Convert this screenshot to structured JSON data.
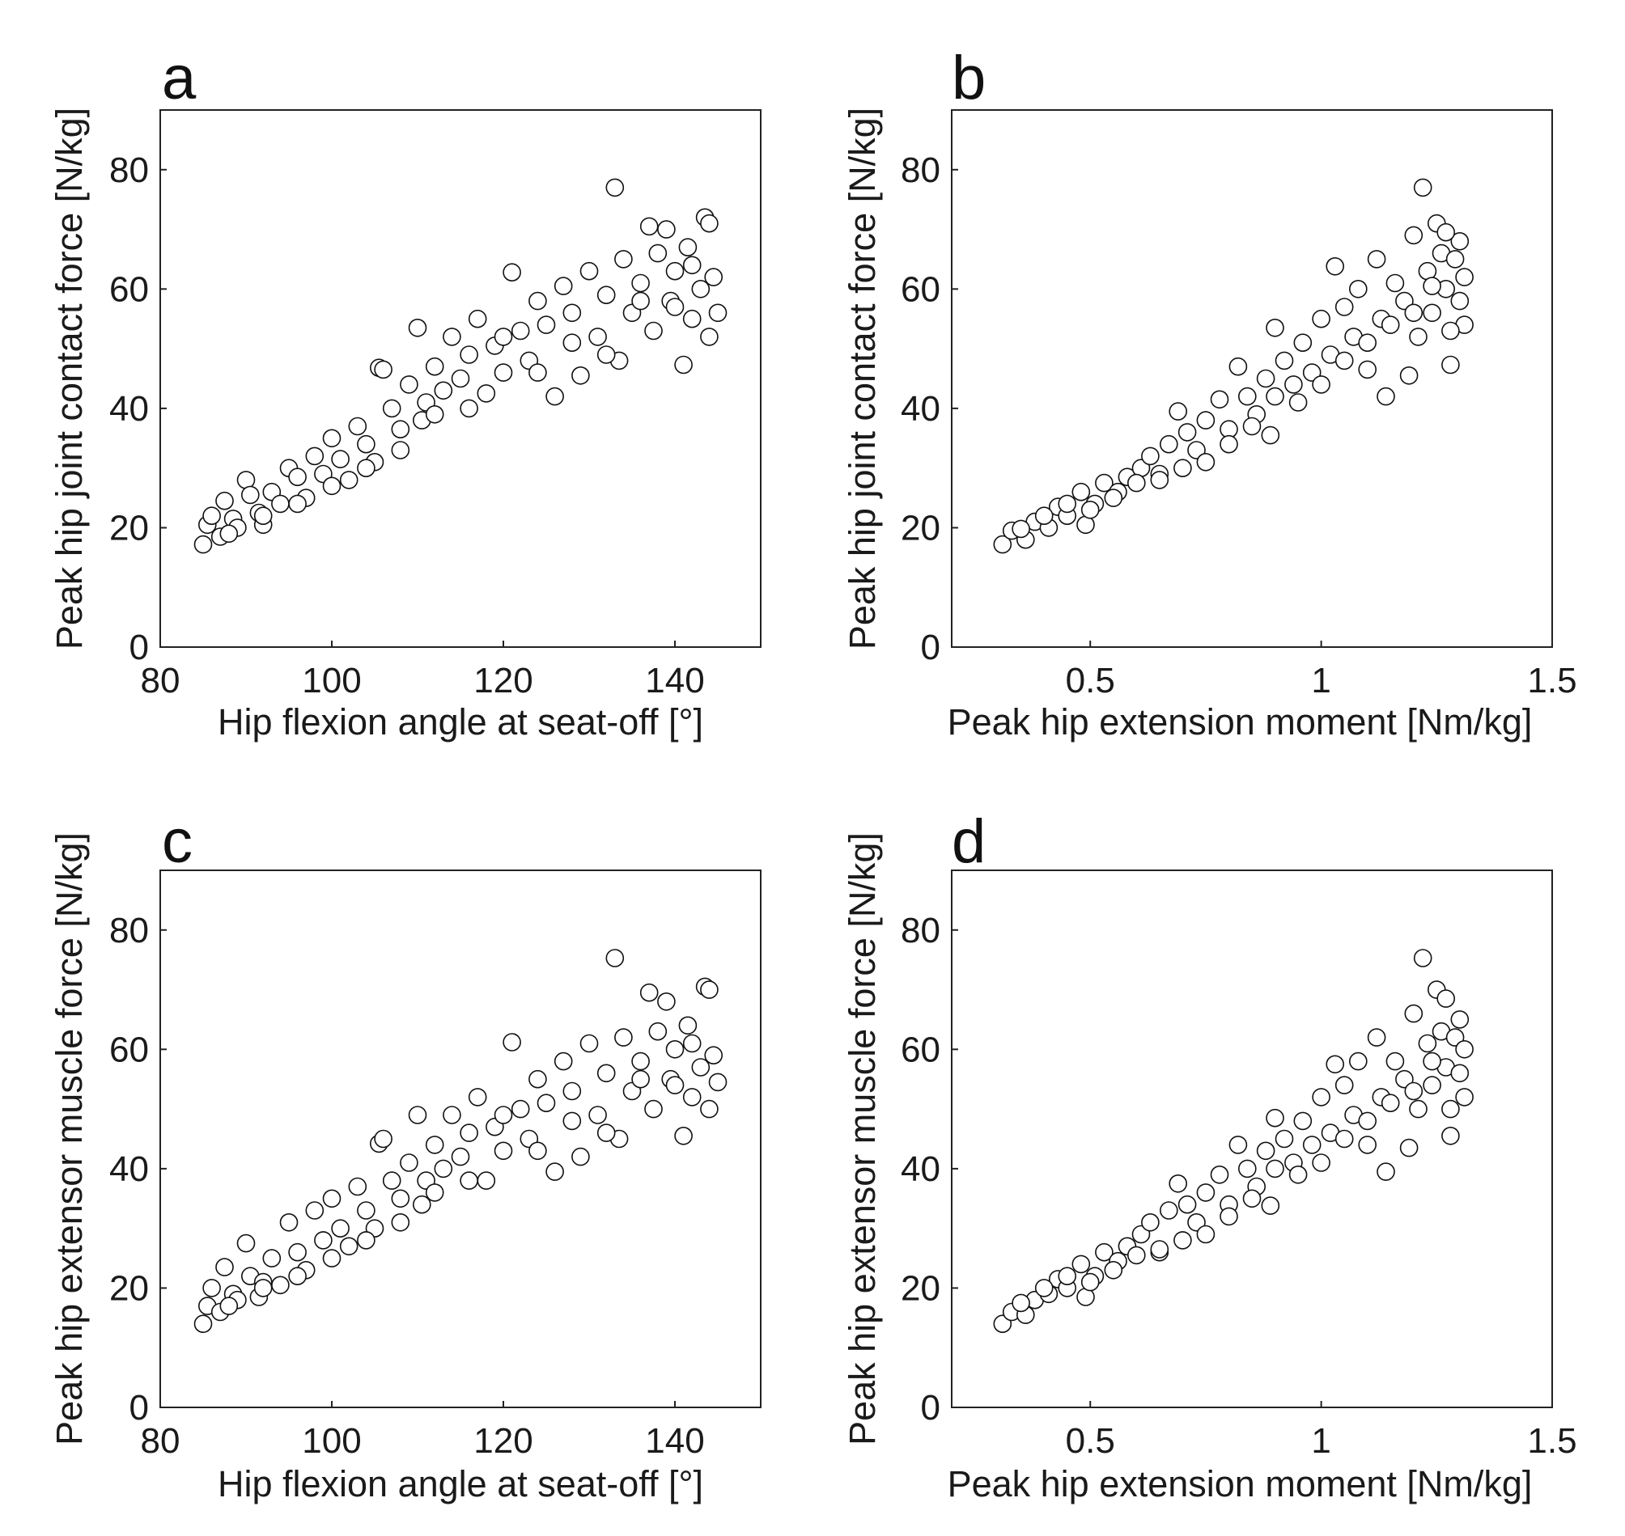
{
  "chart_data": [
    {
      "type": "scatter",
      "panel": "a",
      "xlabel": "Hip flexion angle at seat-off [°]",
      "ylabel": "Peak hip joint contact force [N/kg]",
      "xlim": [
        80,
        150
      ],
      "ylim": [
        0,
        90
      ],
      "xticks": [
        "80",
        "100",
        "120",
        "140"
      ],
      "yticks": [
        "0",
        "20",
        "40",
        "60",
        "80"
      ],
      "grid": false,
      "marker": "open-circle",
      "points": [
        [
          85,
          17.2
        ],
        [
          85.5,
          20.5
        ],
        [
          86,
          22
        ],
        [
          87,
          18.5
        ],
        [
          87.5,
          24.5
        ],
        [
          88.5,
          21.5
        ],
        [
          89,
          20
        ],
        [
          90,
          28
        ],
        [
          90.5,
          25.5
        ],
        [
          91.5,
          22.5
        ],
        [
          92,
          20.5
        ],
        [
          93,
          26
        ],
        [
          94,
          24
        ],
        [
          95,
          30
        ],
        [
          96,
          28.5
        ],
        [
          97,
          25
        ],
        [
          98,
          32
        ],
        [
          99,
          29
        ],
        [
          100,
          35
        ],
        [
          101,
          31.5
        ],
        [
          102,
          28
        ],
        [
          103,
          37
        ],
        [
          104,
          34
        ],
        [
          105,
          31
        ],
        [
          105.5,
          46.8
        ],
        [
          106,
          46.5
        ],
        [
          107,
          40
        ],
        [
          108,
          36.5
        ],
        [
          109,
          44
        ],
        [
          110,
          53.5
        ],
        [
          110.5,
          38
        ],
        [
          111,
          41
        ],
        [
          112,
          47
        ],
        [
          113,
          43
        ],
        [
          114,
          52
        ],
        [
          115,
          45
        ],
        [
          116,
          49
        ],
        [
          117,
          55
        ],
        [
          118,
          42.5
        ],
        [
          119,
          50.5
        ],
        [
          120,
          46
        ],
        [
          121,
          62.8
        ],
        [
          122,
          53
        ],
        [
          123,
          48
        ],
        [
          124,
          58
        ],
        [
          125,
          54
        ],
        [
          126,
          42
        ],
        [
          127,
          60.5
        ],
        [
          128,
          56
        ],
        [
          129,
          45.5
        ],
        [
          130,
          63
        ],
        [
          131,
          52
        ],
        [
          132,
          59
        ],
        [
          133,
          77
        ],
        [
          133.5,
          48
        ],
        [
          134,
          65
        ],
        [
          135,
          56
        ],
        [
          136,
          61
        ],
        [
          137,
          70.5
        ],
        [
          137.5,
          53
        ],
        [
          138,
          66
        ],
        [
          139,
          70
        ],
        [
          139.5,
          58
        ],
        [
          140,
          63
        ],
        [
          141,
          47.3
        ],
        [
          141.5,
          67
        ],
        [
          142,
          55
        ],
        [
          143,
          60
        ],
        [
          143.5,
          72
        ],
        [
          144,
          71
        ],
        [
          144.5,
          62
        ],
        [
          145,
          56
        ],
        [
          144,
          52
        ],
        [
          142,
          64
        ],
        [
          140,
          57
        ],
        [
          136,
          58
        ],
        [
          132,
          49
        ],
        [
          128,
          51
        ],
        [
          124,
          46
        ],
        [
          120,
          52
        ],
        [
          116,
          40
        ],
        [
          112,
          39
        ],
        [
          108,
          33
        ],
        [
          104,
          30
        ],
        [
          100,
          27
        ],
        [
          96,
          24
        ],
        [
          92,
          22
        ],
        [
          88,
          19
        ]
      ]
    },
    {
      "type": "scatter",
      "panel": "b",
      "xlabel": "Peak hip extension moment [Nm/kg]",
      "ylabel": "Peak hip joint contact force [N/kg]",
      "xlim": [
        0.2,
        1.5
      ],
      "ylim": [
        0,
        90
      ],
      "xticks": [
        "0.5",
        "1",
        "1.5"
      ],
      "yticks": [
        "0",
        "20",
        "40",
        "60",
        "80"
      ],
      "grid": false,
      "marker": "open-circle",
      "points": [
        [
          0.31,
          17.2
        ],
        [
          0.33,
          19.5
        ],
        [
          0.36,
          18
        ],
        [
          0.38,
          21
        ],
        [
          0.41,
          20
        ],
        [
          0.43,
          23.5
        ],
        [
          0.45,
          22
        ],
        [
          0.48,
          26
        ],
        [
          0.49,
          20.5
        ],
        [
          0.51,
          24
        ],
        [
          0.53,
          27.5
        ],
        [
          0.56,
          26
        ],
        [
          0.58,
          28.5
        ],
        [
          0.61,
          30
        ],
        [
          0.63,
          32
        ],
        [
          0.65,
          29
        ],
        [
          0.67,
          34
        ],
        [
          0.69,
          39.5
        ],
        [
          0.71,
          36
        ],
        [
          0.73,
          33
        ],
        [
          0.75,
          38
        ],
        [
          0.78,
          41.5
        ],
        [
          0.8,
          36.5
        ],
        [
          0.82,
          47
        ],
        [
          0.84,
          42
        ],
        [
          0.86,
          39
        ],
        [
          0.88,
          45
        ],
        [
          0.89,
          35.5
        ],
        [
          0.9,
          53.5
        ],
        [
          0.92,
          48
        ],
        [
          0.94,
          44
        ],
        [
          0.96,
          51
        ],
        [
          0.98,
          46
        ],
        [
          1.0,
          55
        ],
        [
          1.02,
          49
        ],
        [
          1.03,
          63.8
        ],
        [
          1.05,
          57
        ],
        [
          1.07,
          52
        ],
        [
          1.08,
          60
        ],
        [
          1.1,
          46.5
        ],
        [
          1.12,
          65
        ],
        [
          1.13,
          55
        ],
        [
          1.14,
          42
        ],
        [
          1.16,
          61
        ],
        [
          1.18,
          58
        ],
        [
          1.19,
          45.5
        ],
        [
          1.2,
          69
        ],
        [
          1.21,
          52
        ],
        [
          1.22,
          77
        ],
        [
          1.23,
          63
        ],
        [
          1.24,
          56
        ],
        [
          1.25,
          71
        ],
        [
          1.26,
          66
        ],
        [
          1.27,
          60
        ],
        [
          1.28,
          47.3
        ],
        [
          1.29,
          65
        ],
        [
          1.3,
          58
        ],
        [
          1.31,
          62
        ],
        [
          1.31,
          54
        ],
        [
          1.3,
          68
        ],
        [
          1.28,
          53
        ],
        [
          1.27,
          69.5
        ],
        [
          1.24,
          60.5
        ],
        [
          1.2,
          56
        ],
        [
          1.15,
          54
        ],
        [
          1.1,
          51
        ],
        [
          1.05,
          48
        ],
        [
          1.0,
          44
        ],
        [
          0.95,
          41
        ],
        [
          0.9,
          42
        ],
        [
          0.85,
          37
        ],
        [
          0.8,
          34
        ],
        [
          0.75,
          31
        ],
        [
          0.7,
          30
        ],
        [
          0.65,
          28
        ],
        [
          0.6,
          27.5
        ],
        [
          0.55,
          25
        ],
        [
          0.5,
          23
        ],
        [
          0.45,
          24
        ],
        [
          0.4,
          22
        ],
        [
          0.35,
          19.8
        ]
      ]
    },
    {
      "type": "scatter",
      "panel": "c",
      "xlabel": "Hip flexion angle at seat-off [°]",
      "ylabel": "Peak hip extensor muscle force [N/kg]",
      "xlim": [
        80,
        150
      ],
      "ylim": [
        0,
        90
      ],
      "xticks": [
        "80",
        "100",
        "120",
        "140"
      ],
      "yticks": [
        "0",
        "20",
        "40",
        "60",
        "80"
      ],
      "grid": false,
      "marker": "open-circle",
      "points": [
        [
          85,
          14
        ],
        [
          85.5,
          17
        ],
        [
          86,
          20
        ],
        [
          87,
          16
        ],
        [
          87.5,
          23.5
        ],
        [
          88.5,
          19
        ],
        [
          89,
          18
        ],
        [
          90,
          27.5
        ],
        [
          90.5,
          22
        ],
        [
          91.5,
          18.5
        ],
        [
          92,
          21
        ],
        [
          93,
          25
        ],
        [
          94,
          20.5
        ],
        [
          95,
          31
        ],
        [
          96,
          26
        ],
        [
          97,
          23
        ],
        [
          98,
          33
        ],
        [
          99,
          28
        ],
        [
          100,
          35
        ],
        [
          101,
          30
        ],
        [
          102,
          27
        ],
        [
          103,
          37
        ],
        [
          104,
          33
        ],
        [
          105,
          30
        ],
        [
          105.5,
          44.2
        ],
        [
          106,
          45
        ],
        [
          107,
          38
        ],
        [
          108,
          35
        ],
        [
          109,
          41
        ],
        [
          110,
          49
        ],
        [
          110.5,
          34
        ],
        [
          111,
          38
        ],
        [
          112,
          44
        ],
        [
          113,
          40
        ],
        [
          114,
          49
        ],
        [
          115,
          42
        ],
        [
          116,
          46
        ],
        [
          117,
          52
        ],
        [
          118,
          38
        ],
        [
          119,
          47
        ],
        [
          120,
          43
        ],
        [
          121,
          61.2
        ],
        [
          122,
          50
        ],
        [
          123,
          45
        ],
        [
          124,
          55
        ],
        [
          125,
          51
        ],
        [
          126,
          39.5
        ],
        [
          127,
          58
        ],
        [
          128,
          53
        ],
        [
          129,
          42
        ],
        [
          130,
          61
        ],
        [
          131,
          49
        ],
        [
          132,
          56
        ],
        [
          133,
          75.3
        ],
        [
          133.5,
          45
        ],
        [
          134,
          62
        ],
        [
          135,
          53
        ],
        [
          136,
          58
        ],
        [
          137,
          69.5
        ],
        [
          137.5,
          50
        ],
        [
          138,
          63
        ],
        [
          139,
          68
        ],
        [
          139.5,
          55
        ],
        [
          140,
          60
        ],
        [
          141,
          45.5
        ],
        [
          141.5,
          64
        ],
        [
          142,
          52
        ],
        [
          143,
          57
        ],
        [
          143.5,
          70.5
        ],
        [
          144,
          70
        ],
        [
          144.5,
          59
        ],
        [
          145,
          54.5
        ],
        [
          144,
          50
        ],
        [
          142,
          61
        ],
        [
          140,
          54
        ],
        [
          136,
          55
        ],
        [
          132,
          46
        ],
        [
          128,
          48
        ],
        [
          124,
          43
        ],
        [
          120,
          49
        ],
        [
          116,
          38
        ],
        [
          112,
          36
        ],
        [
          108,
          31
        ],
        [
          104,
          28
        ],
        [
          100,
          25
        ],
        [
          96,
          22
        ],
        [
          92,
          20
        ],
        [
          88,
          17
        ]
      ]
    },
    {
      "type": "scatter",
      "panel": "d",
      "xlabel": "Peak hip extension moment [Nm/kg]",
      "ylabel": "Peak hip extensor muscle force [N/kg]",
      "xlim": [
        0.2,
        1.5
      ],
      "ylim": [
        0,
        90
      ],
      "xticks": [
        "0.5",
        "1",
        "1.5"
      ],
      "yticks": [
        "0",
        "20",
        "40",
        "60",
        "80"
      ],
      "grid": false,
      "marker": "open-circle",
      "points": [
        [
          0.31,
          14
        ],
        [
          0.33,
          16
        ],
        [
          0.36,
          15.5
        ],
        [
          0.38,
          18
        ],
        [
          0.41,
          19
        ],
        [
          0.43,
          21.5
        ],
        [
          0.45,
          20
        ],
        [
          0.48,
          24
        ],
        [
          0.49,
          18.5
        ],
        [
          0.51,
          22
        ],
        [
          0.53,
          26
        ],
        [
          0.56,
          24.5
        ],
        [
          0.58,
          27
        ],
        [
          0.61,
          29
        ],
        [
          0.63,
          31
        ],
        [
          0.65,
          26
        ],
        [
          0.67,
          33
        ],
        [
          0.69,
          37.5
        ],
        [
          0.71,
          34
        ],
        [
          0.73,
          31
        ],
        [
          0.75,
          36
        ],
        [
          0.78,
          39
        ],
        [
          0.8,
          34
        ],
        [
          0.82,
          44
        ],
        [
          0.84,
          40
        ],
        [
          0.86,
          37
        ],
        [
          0.88,
          43
        ],
        [
          0.89,
          33.8
        ],
        [
          0.9,
          48.5
        ],
        [
          0.92,
          45
        ],
        [
          0.94,
          41
        ],
        [
          0.96,
          48
        ],
        [
          0.98,
          44
        ],
        [
          1.0,
          52
        ],
        [
          1.02,
          46
        ],
        [
          1.03,
          57.5
        ],
        [
          1.05,
          54
        ],
        [
          1.07,
          49
        ],
        [
          1.08,
          58
        ],
        [
          1.1,
          44
        ],
        [
          1.12,
          62
        ],
        [
          1.13,
          52
        ],
        [
          1.14,
          39.5
        ],
        [
          1.16,
          58
        ],
        [
          1.18,
          55
        ],
        [
          1.19,
          43.5
        ],
        [
          1.2,
          66
        ],
        [
          1.21,
          50
        ],
        [
          1.22,
          75.3
        ],
        [
          1.23,
          61
        ],
        [
          1.24,
          54
        ],
        [
          1.25,
          70
        ],
        [
          1.26,
          63
        ],
        [
          1.27,
          57
        ],
        [
          1.28,
          45.5
        ],
        [
          1.29,
          62
        ],
        [
          1.3,
          56
        ],
        [
          1.31,
          60
        ],
        [
          1.31,
          52
        ],
        [
          1.3,
          65
        ],
        [
          1.28,
          50
        ],
        [
          1.27,
          68.5
        ],
        [
          1.24,
          58
        ],
        [
          1.2,
          53
        ],
        [
          1.15,
          51
        ],
        [
          1.1,
          48
        ],
        [
          1.05,
          45
        ],
        [
          1.0,
          41
        ],
        [
          0.95,
          39
        ],
        [
          0.9,
          40
        ],
        [
          0.85,
          35
        ],
        [
          0.8,
          32
        ],
        [
          0.75,
          29
        ],
        [
          0.7,
          28
        ],
        [
          0.65,
          26.5
        ],
        [
          0.6,
          25.5
        ],
        [
          0.55,
          23
        ],
        [
          0.5,
          21
        ],
        [
          0.45,
          22
        ],
        [
          0.4,
          20
        ],
        [
          0.35,
          17.5
        ]
      ]
    }
  ]
}
